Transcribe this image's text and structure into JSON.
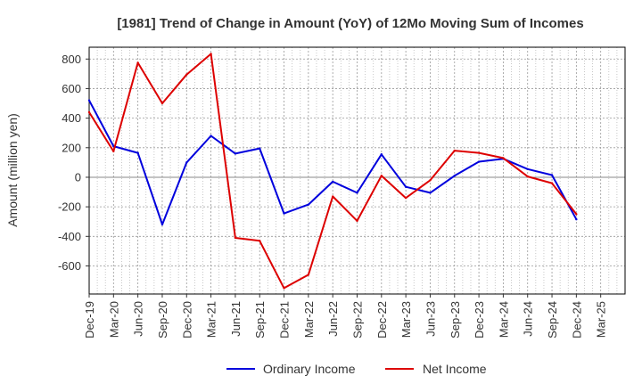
{
  "chart_data": {
    "type": "line",
    "title": "[1981]  Trend of Change in Amount (YoY) of 12Mo Moving Sum of Incomes",
    "xlabel": "",
    "ylabel": "Amount (million yen)",
    "ylim": [
      -790,
      880
    ],
    "yticks": [
      800,
      600,
      400,
      200,
      0,
      -200,
      -400,
      -600
    ],
    "x": [
      "Dec-19",
      "Mar-20",
      "Jun-20",
      "Sep-20",
      "Dec-20",
      "Mar-21",
      "Jun-21",
      "Sep-21",
      "Dec-21",
      "Mar-22",
      "Jun-22",
      "Sep-22",
      "Dec-22",
      "Mar-23",
      "Jun-23",
      "Sep-23",
      "Dec-23",
      "Mar-24",
      "Jun-24",
      "Sep-24",
      "Dec-24",
      "Mar-25"
    ],
    "grid": true,
    "legend_position": "bottom-center",
    "series": [
      {
        "name": "Ordinary Income",
        "color": "#0000dd",
        "values": [
          520,
          210,
          165,
          -320,
          100,
          280,
          160,
          195,
          -245,
          -185,
          -30,
          -105,
          155,
          -65,
          -105,
          10,
          105,
          125,
          55,
          15,
          -285,
          null
        ]
      },
      {
        "name": "Net Income",
        "color": "#dd0000",
        "values": [
          440,
          175,
          775,
          500,
          695,
          835,
          -410,
          -430,
          -750,
          -660,
          -130,
          -295,
          10,
          -140,
          -20,
          180,
          165,
          130,
          5,
          -40,
          -250,
          null
        ]
      }
    ]
  }
}
